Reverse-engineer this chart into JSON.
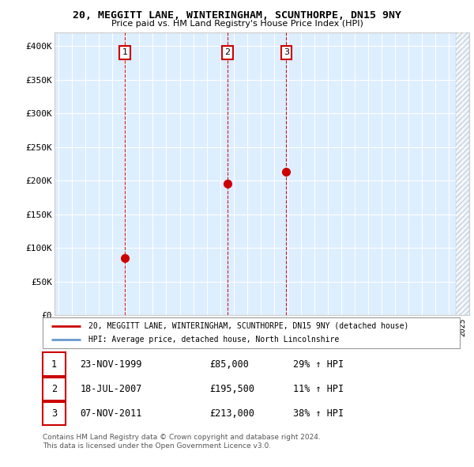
{
  "title": "20, MEGGITT LANE, WINTERINGHAM, SCUNTHORPE, DN15 9NY",
  "subtitle": "Price paid vs. HM Land Registry's House Price Index (HPI)",
  "sale_dates_float": [
    1999.917,
    2007.542,
    2011.917
  ],
  "sale_prices": [
    85000,
    195500,
    213000
  ],
  "sale_labels": [
    "1",
    "2",
    "3"
  ],
  "sale_info": [
    {
      "label": "1",
      "date": "23-NOV-1999",
      "price": "£85,000",
      "hpi": "29% ↑ HPI"
    },
    {
      "label": "2",
      "date": "18-JUL-2007",
      "price": "£195,500",
      "hpi": "11% ↑ HPI"
    },
    {
      "label": "3",
      "date": "07-NOV-2011",
      "price": "£213,000",
      "hpi": "38% ↑ HPI"
    }
  ],
  "legend_line1": "20, MEGGITT LANE, WINTERINGHAM, SCUNTHORPE, DN15 9NY (detached house)",
  "legend_line2": "HPI: Average price, detached house, North Lincolnshire",
  "footer1": "Contains HM Land Registry data © Crown copyright and database right 2024.",
  "footer2": "This data is licensed under the Open Government Licence v3.0.",
  "sale_color": "#cc0000",
  "hpi_color": "#6699cc",
  "bg_color": "#ddeeff",
  "ylim": [
    0,
    420000
  ],
  "xlim": [
    1994.7,
    2025.5
  ],
  "yticks": [
    0,
    50000,
    100000,
    150000,
    200000,
    250000,
    300000,
    350000,
    400000
  ],
  "ytick_labels": [
    "£0",
    "£50K",
    "£100K",
    "£150K",
    "£200K",
    "£250K",
    "£300K",
    "£350K",
    "£400K"
  ]
}
